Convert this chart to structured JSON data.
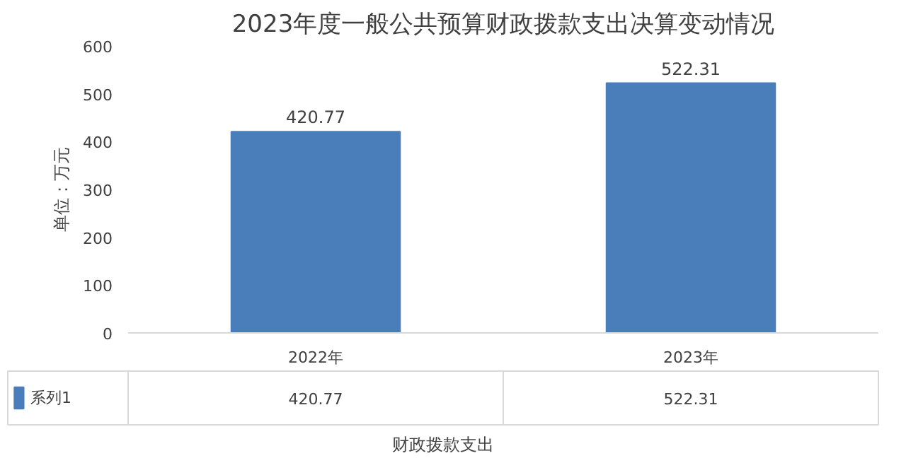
{
  "chart_data": {
    "type": "bar",
    "title": "2023年度一般公共预算财政拨款支出决算变动情况",
    "ylabel": "单位：万元",
    "xlabel": "财政拨款支出",
    "categories": [
      "2022年",
      "2023年"
    ],
    "series": [
      {
        "name": "系列1",
        "color": "#4a7ebb",
        "values": [
          420.77,
          522.31
        ],
        "value_labels": [
          "420.77",
          "522.31"
        ]
      }
    ],
    "ylim": [
      0,
      600
    ],
    "yticks": [
      0,
      100,
      200,
      300,
      400,
      500,
      600
    ],
    "grid": false,
    "legend": "bottom left",
    "annotations": [
      "420.77",
      "522.31"
    ]
  }
}
